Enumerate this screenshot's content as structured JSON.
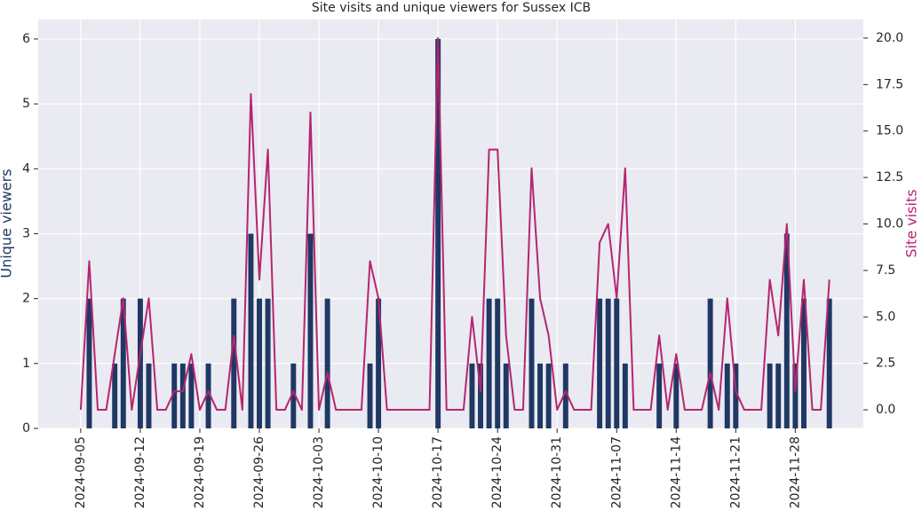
{
  "chart_data": {
    "type": "bar_line",
    "title": "Site visits and unique viewers for Sussex ICB",
    "ylabel": "Unique viewers",
    "y2label": "Site visits",
    "x": [
      "2024-09-05",
      "2024-09-06",
      "2024-09-07",
      "2024-09-08",
      "2024-09-09",
      "2024-09-10",
      "2024-09-11",
      "2024-09-12",
      "2024-09-13",
      "2024-09-14",
      "2024-09-15",
      "2024-09-16",
      "2024-09-17",
      "2024-09-18",
      "2024-09-19",
      "2024-09-20",
      "2024-09-21",
      "2024-09-22",
      "2024-09-23",
      "2024-09-24",
      "2024-09-25",
      "2024-09-26",
      "2024-09-27",
      "2024-09-28",
      "2024-09-29",
      "2024-09-30",
      "2024-10-01",
      "2024-10-02",
      "2024-10-03",
      "2024-10-04",
      "2024-10-05",
      "2024-10-06",
      "2024-10-07",
      "2024-10-08",
      "2024-10-09",
      "2024-10-10",
      "2024-10-11",
      "2024-10-12",
      "2024-10-13",
      "2024-10-14",
      "2024-10-15",
      "2024-10-16",
      "2024-10-17",
      "2024-10-18",
      "2024-10-19",
      "2024-10-20",
      "2024-10-21",
      "2024-10-22",
      "2024-10-23",
      "2024-10-24",
      "2024-10-25",
      "2024-10-26",
      "2024-10-27",
      "2024-10-28",
      "2024-10-29",
      "2024-10-30",
      "2024-10-31",
      "2024-11-01",
      "2024-11-02",
      "2024-11-03",
      "2024-11-04",
      "2024-11-05",
      "2024-11-06",
      "2024-11-07",
      "2024-11-08",
      "2024-11-09",
      "2024-11-10",
      "2024-11-11",
      "2024-11-12",
      "2024-11-13",
      "2024-11-14",
      "2024-11-15",
      "2024-11-16",
      "2024-11-17",
      "2024-11-18",
      "2024-11-19",
      "2024-11-20",
      "2024-11-21",
      "2024-11-22",
      "2024-11-23",
      "2024-11-24",
      "2024-11-25",
      "2024-11-26",
      "2024-11-27",
      "2024-11-28",
      "2024-11-29",
      "2024-11-30",
      "2024-12-01",
      "2024-12-02"
    ],
    "series": [
      {
        "name": "Unique viewers",
        "type": "bar",
        "axis": "y",
        "color": "#1f3864",
        "values": [
          0,
          2,
          0,
          0,
          1,
          2,
          0,
          2,
          1,
          0,
          0,
          1,
          1,
          1,
          0,
          1,
          0,
          0,
          2,
          0,
          3,
          2,
          2,
          0,
          0,
          1,
          0,
          3,
          0,
          2,
          0,
          0,
          0,
          0,
          1,
          2,
          0,
          0,
          0,
          0,
          0,
          0,
          6,
          0,
          0,
          0,
          1,
          1,
          2,
          2,
          1,
          0,
          0,
          2,
          1,
          1,
          0,
          1,
          0,
          0,
          0,
          2,
          2,
          2,
          1,
          0,
          0,
          0,
          1,
          0,
          1,
          0,
          0,
          0,
          2,
          0,
          1,
          1,
          0,
          0,
          0,
          1,
          1,
          3,
          1,
          2,
          0,
          0,
          2
        ]
      },
      {
        "name": "Site visits",
        "type": "line",
        "axis": "y2",
        "color": "#b5266f",
        "values": [
          0,
          8,
          0,
          0,
          3,
          6,
          0,
          3,
          6,
          0,
          0,
          1,
          1,
          3,
          0,
          1,
          0,
          0,
          4,
          0,
          17,
          7,
          14,
          0,
          0,
          1,
          0,
          16,
          0,
          2,
          0,
          0,
          0,
          0,
          8,
          6,
          0,
          0,
          0,
          0,
          0,
          0,
          20,
          0,
          0,
          0,
          5,
          1,
          14,
          14,
          4,
          0,
          0,
          13,
          6,
          4,
          0,
          1,
          0,
          0,
          0,
          9,
          10,
          6,
          13,
          0,
          0,
          0,
          4,
          0,
          3,
          0,
          0,
          0,
          2,
          0,
          6,
          1,
          0,
          0,
          0,
          7,
          4,
          10,
          1,
          7,
          0,
          0,
          7
        ]
      }
    ],
    "xlim": [
      "2024-08-31",
      "2024-12-06"
    ],
    "xticks": [
      "2024-09-05",
      "2024-09-12",
      "2024-09-19",
      "2024-09-26",
      "2024-10-03",
      "2024-10-10",
      "2024-10-17",
      "2024-10-24",
      "2024-10-31",
      "2024-11-07",
      "2024-11-14",
      "2024-11-21",
      "2024-11-28"
    ],
    "ylim": [
      0,
      6.3
    ],
    "yticks": [
      0,
      1,
      2,
      3,
      4,
      5,
      6
    ],
    "y2lim": [
      -1,
      21
    ],
    "y2ticks": [
      {
        "value": 0,
        "label": "0.0"
      },
      {
        "value": 2.5,
        "label": "2.5"
      },
      {
        "value": 5,
        "label": "5.0"
      },
      {
        "value": 7.5,
        "label": "7.5"
      },
      {
        "value": 10,
        "label": "10.0"
      },
      {
        "value": 12.5,
        "label": "12.5"
      },
      {
        "value": 15,
        "label": "15.0"
      },
      {
        "value": 17.5,
        "label": "17.5"
      },
      {
        "value": 20,
        "label": "20.0"
      }
    ],
    "grid": true,
    "background": "#eaeaf2"
  }
}
